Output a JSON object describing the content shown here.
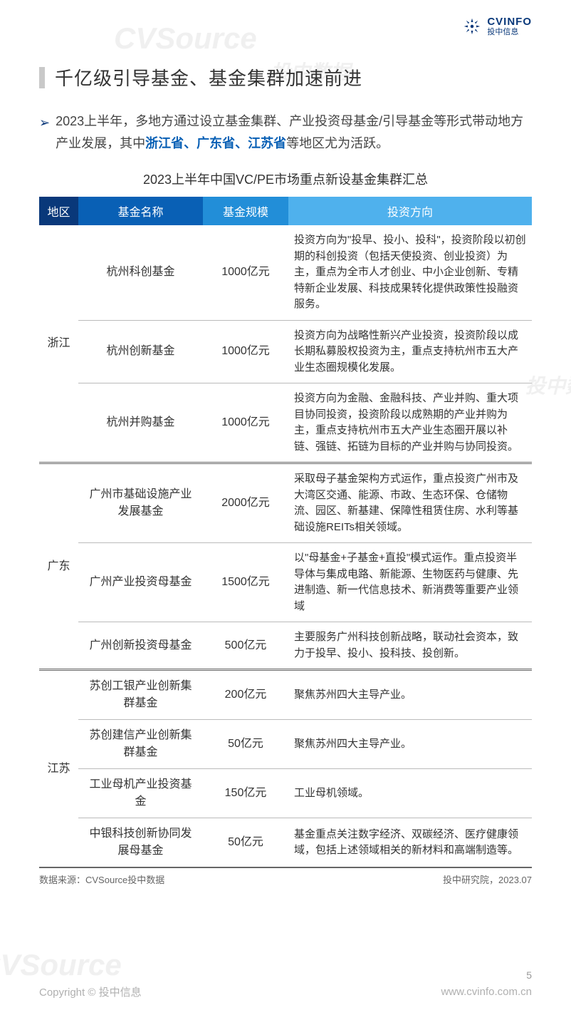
{
  "logo": {
    "main": "CVINFO",
    "sub": "投中信息"
  },
  "watermarks": [
    "CVSource",
    "投中数据",
    "CVSource",
    "投中数"
  ],
  "title": "千亿级引导基金、基金集群加速前进",
  "intro": {
    "prefix": "2023上半年，多地方通过设立基金集群、产业投资母基金/引导基金等形式带动地方产业发展，其中",
    "highlights": "浙江省、广东省、江苏省",
    "suffix": "等地区尤为活跃。"
  },
  "table": {
    "title": "2023上半年中国VC/PE市场重点新设基金集群汇总",
    "headers": {
      "region": "地区",
      "name": "基金名称",
      "size": "基金规模",
      "direction": "投资方向"
    },
    "header_colors": {
      "region": "#09387a",
      "name": "#0960b5",
      "size": "#228ed8",
      "direction": "#4fb1ed"
    },
    "groups": [
      {
        "region": "浙江",
        "rows": [
          {
            "name": "杭州科创基金",
            "size": "1000亿元",
            "direction": "投资方向为\"投早、投小、投科\"，投资阶段以初创期的科创投资（包括天使投资、创业投资）为主，重点为全市人才创业、中小企业创新、专精特新企业发展、科技成果转化提供政策性投融资服务。"
          },
          {
            "name": "杭州创新基金",
            "size": "1000亿元",
            "direction": "投资方向为战略性新兴产业投资，投资阶段以成长期私募股权投资为主，重点支持杭州市五大产业生态圈规模化发展。"
          },
          {
            "name": "杭州并购基金",
            "size": "1000亿元",
            "direction": "投资方向为金融、金融科技、产业并购、重大项目协同投资，投资阶段以成熟期的产业并购为主，重点支持杭州市五大产业生态圈开展以补链、强链、拓链为目标的产业并购与协同投资。"
          }
        ]
      },
      {
        "region": "广东",
        "rows": [
          {
            "name": "广州市基础设施产业发展基金",
            "size": "2000亿元",
            "direction": "采取母子基金架构方式运作，重点投资广州市及大湾区交通、能源、市政、生态环保、仓储物流、园区、新基建、保障性租赁住房、水利等基础设施REITs相关领域。"
          },
          {
            "name": "广州产业投资母基金",
            "size": "1500亿元",
            "direction": "以\"母基金+子基金+直投\"模式运作。重点投资半导体与集成电路、新能源、生物医药与健康、先进制造、新一代信息技术、新消费等重要产业领域"
          },
          {
            "name": "广州创新投资母基金",
            "size": "500亿元",
            "direction": "主要服务广州科技创新战略，联动社会资本，致力于投早、投小、投科技、投创新。"
          }
        ]
      },
      {
        "region": "江苏",
        "rows": [
          {
            "name": "苏创工银产业创新集群基金",
            "size": "200亿元",
            "direction": "聚焦苏州四大主导产业。"
          },
          {
            "name": "苏创建信产业创新集群基金",
            "size": "50亿元",
            "direction": "聚焦苏州四大主导产业。"
          },
          {
            "name": "工业母机产业投资基金",
            "size": "150亿元",
            "direction": "工业母机领域。"
          },
          {
            "name": "中银科技创新协同发展母基金",
            "size": "50亿元",
            "direction": "基金重点关注数字经济、双碳经济、医疗健康领域，包括上述领域相关的新材料和高端制造等。"
          }
        ]
      }
    ]
  },
  "source": {
    "left": "数据来源：CVSource投中数据",
    "right": "投中研究院，2023.07"
  },
  "footer": {
    "copyright": "Copyright © 投中信息",
    "url": "www.cvinfo.com.cn",
    "page": "5"
  }
}
